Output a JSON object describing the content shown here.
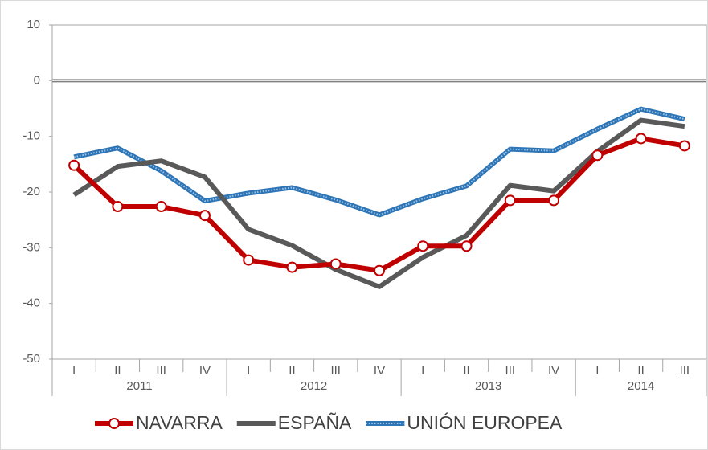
{
  "chart_data": {
    "type": "line",
    "categories": [
      "I",
      "II",
      "III",
      "IV",
      "I",
      "II",
      "III",
      "IV",
      "I",
      "II",
      "III",
      "IV",
      "I",
      "II",
      "III"
    ],
    "years": [
      "2011",
      "2012",
      "2013",
      "2014"
    ],
    "series": [
      {
        "name": "NAVARRA",
        "color": "#c00000",
        "marker": "circle",
        "values": [
          -15.2,
          -22.6,
          -22.6,
          -24.2,
          -32.2,
          -33.5,
          -32.9,
          -34.1,
          -29.7,
          -29.7,
          -21.5,
          -21.5,
          -13.4,
          -10.4,
          -11.7
        ]
      },
      {
        "name": "ESPAÑA",
        "color": "#595959",
        "values": [
          -20.5,
          -15.4,
          -14.4,
          -17.3,
          -26.7,
          -29.6,
          -33.9,
          -37.0,
          -31.7,
          -27.8,
          -18.8,
          -19.8,
          -12.7,
          -7.1,
          -8.2
        ]
      },
      {
        "name": "UNIÓN EUROPEA",
        "color": "#2e75b6",
        "dotted": true,
        "values": [
          -13.7,
          -12.1,
          -16.2,
          -21.6,
          -20.2,
          -19.2,
          -21.4,
          -24.1,
          -21.2,
          -18.9,
          -12.3,
          -12.6,
          -8.7,
          -5.1,
          -6.9
        ]
      }
    ],
    "ylim": [
      -50,
      10
    ],
    "yticks": [
      10,
      0,
      -10,
      -20,
      -30,
      -40,
      -50
    ],
    "grid": false,
    "legend": "bottom"
  }
}
